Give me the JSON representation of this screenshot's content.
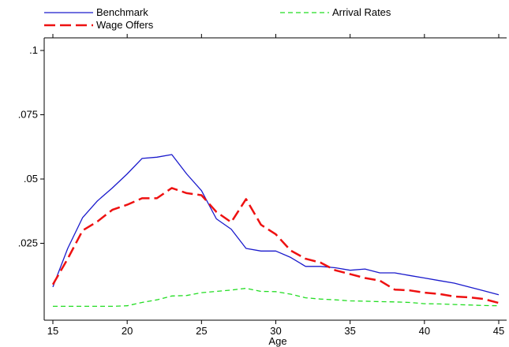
{
  "chart_data": {
    "type": "line",
    "xlabel": "Age",
    "ylabel": "",
    "xlim": [
      15,
      45
    ],
    "ylim": [
      0,
      0.1
    ],
    "x_ticks": [
      15,
      20,
      25,
      30,
      35,
      40,
      45
    ],
    "x_tick_labels": [
      "15",
      "20",
      "25",
      "30",
      "35",
      "40",
      "45"
    ],
    "y_ticks": [
      0.025,
      0.05,
      0.075,
      0.1
    ],
    "y_tick_labels": [
      ".025",
      ".05",
      ".075",
      ".1"
    ],
    "grid": false,
    "legend_position": "top",
    "x": [
      15,
      16,
      17,
      18,
      19,
      20,
      21,
      22,
      23,
      24,
      25,
      26,
      27,
      28,
      29,
      30,
      31,
      32,
      33,
      34,
      35,
      36,
      37,
      38,
      39,
      40,
      41,
      42,
      43,
      44,
      45
    ],
    "series": [
      {
        "name": "Benchmark",
        "color": "#1a1acc",
        "style": "solid",
        "values": [
          0.008,
          0.023,
          0.035,
          0.0415,
          0.0465,
          0.052,
          0.058,
          0.0585,
          0.0595,
          0.052,
          0.0455,
          0.0345,
          0.0305,
          0.023,
          0.022,
          0.022,
          0.0195,
          0.016,
          0.016,
          0.0155,
          0.0145,
          0.015,
          0.0135,
          0.0135,
          0.0125,
          0.0115,
          0.0105,
          0.0095,
          0.008,
          0.0065,
          0.005
        ]
      },
      {
        "name": "Arrival Rates",
        "color": "#22dd22",
        "style": "dashed",
        "values": [
          0.0005,
          0.0005,
          0.0005,
          0.0005,
          0.0005,
          0.0007,
          0.002,
          0.003,
          0.0045,
          0.0047,
          0.0058,
          0.0063,
          0.0068,
          0.0075,
          0.0063,
          0.0062,
          0.0052,
          0.0038,
          0.0033,
          0.003,
          0.0026,
          0.0025,
          0.0023,
          0.0022,
          0.002,
          0.0015,
          0.0014,
          0.0012,
          0.001,
          0.0008,
          0.0007
        ]
      },
      {
        "name": "Wage Offers",
        "color": "#ee1111",
        "style": "longdash",
        "values": [
          0.009,
          0.019,
          0.03,
          0.0335,
          0.038,
          0.04,
          0.0425,
          0.0425,
          0.0465,
          0.0445,
          0.0437,
          0.0372,
          0.0332,
          0.0422,
          0.0322,
          0.0285,
          0.0222,
          0.019,
          0.0175,
          0.0145,
          0.013,
          0.0115,
          0.0105,
          0.007,
          0.0067,
          0.0058,
          0.0053,
          0.0043,
          0.004,
          0.0033,
          0.0018
        ]
      }
    ]
  }
}
